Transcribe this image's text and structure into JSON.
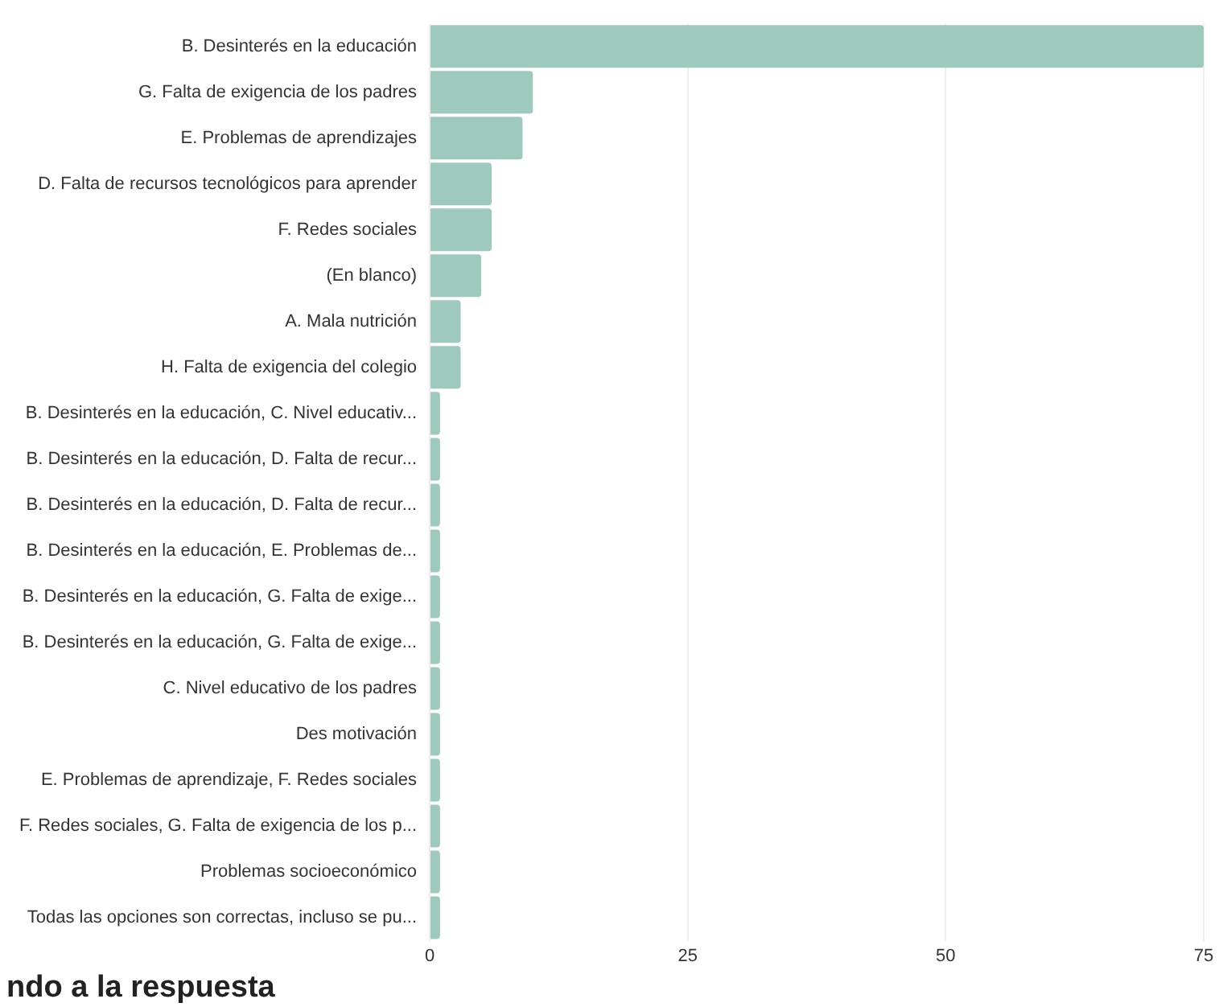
{
  "chart_data": {
    "type": "bar",
    "orientation": "horizontal",
    "categories": [
      "B. Desinterés en la educación",
      "G. Falta de exigencia de los padres",
      "E. Problemas de aprendizajes",
      "D. Falta de recursos tecnológicos para aprender",
      "F. Redes sociales",
      "(En blanco)",
      "A. Mala nutrición",
      "H. Falta de exigencia del colegio",
      "B. Desinterés en la educación, C. Nivel educativ...",
      "B. Desinterés en la educación, D. Falta de recur...",
      "B. Desinterés en la educación, D. Falta de recur...",
      "B. Desinterés en la educación, E. Problemas de...",
      "B. Desinterés en la educación, G. Falta de exige...",
      "B. Desinterés en la educación, G. Falta de exige...",
      "C. Nivel educativo de los padres",
      "Des motivación",
      "E. Problemas de aprendizaje, F. Redes sociales",
      "F. Redes sociales, G. Falta de exigencia de los p...",
      "Problemas socioeconómico",
      "Todas las opciones son correctas, incluso se pu..."
    ],
    "values": [
      75,
      10,
      9,
      6,
      6,
      5,
      3,
      3,
      1,
      1,
      1,
      1,
      1,
      1,
      1,
      1,
      1,
      1,
      1,
      1
    ],
    "color": "#9ec9bd",
    "xlim": [
      0,
      75
    ],
    "xticks": [
      0,
      25,
      50,
      75
    ],
    "grid": "x",
    "legend": false,
    "annotations": [
      "ndo a la respuesta"
    ]
  }
}
